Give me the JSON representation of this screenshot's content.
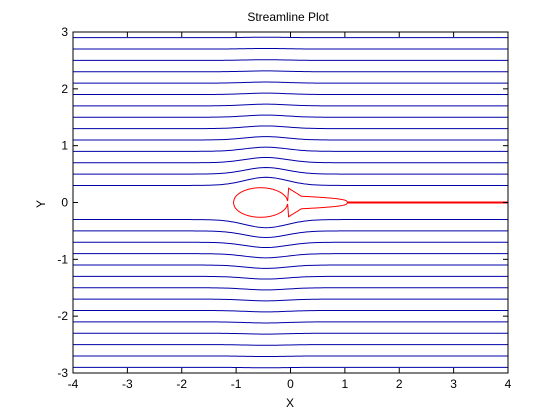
{
  "chart_data": {
    "type": "line",
    "title": "Streamline Plot",
    "xlabel": "X",
    "ylabel": "Y",
    "xlim": [
      -4,
      4
    ],
    "ylim": [
      -3,
      3
    ],
    "x_ticks": [
      -4,
      -3,
      -2,
      -1,
      0,
      1,
      2,
      3,
      4
    ],
    "y_ticks": [
      -3,
      -2,
      -1,
      0,
      1,
      2,
      3
    ],
    "x_tick_labels": [
      "-4",
      "-3",
      "-2",
      "-1",
      "0",
      "1",
      "2",
      "3",
      "4"
    ],
    "y_tick_labels": [
      "-3",
      "-2",
      "-1",
      "0",
      "1",
      "2",
      "3"
    ],
    "grid": false,
    "streamline_color": "#0000aa",
    "dividing_streamline_color": "#ff0000",
    "streamline_start_y": [
      -2.9,
      -2.7,
      -2.5,
      -2.3,
      -2.1,
      -1.9,
      -1.7,
      -1.5,
      -1.3,
      -1.1,
      -0.9,
      -0.7,
      -0.5,
      -0.3,
      0.3,
      0.5,
      0.7,
      0.9,
      1.1,
      1.3,
      1.5,
      1.7,
      1.9,
      2.1,
      2.3,
      2.5,
      2.7,
      2.9
    ],
    "dividing_streamline": {
      "body_x_range": [
        -1.05,
        1.05
      ],
      "tail_y": 0.0,
      "tail_x_range": [
        1.05,
        4.0
      ]
    }
  }
}
